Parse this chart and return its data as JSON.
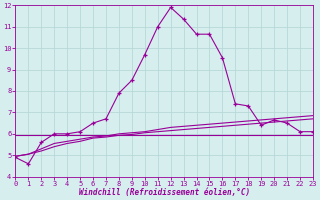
{
  "x": [
    0,
    1,
    2,
    3,
    4,
    5,
    6,
    7,
    8,
    9,
    10,
    11,
    12,
    13,
    14,
    15,
    16,
    17,
    18,
    19,
    20,
    21,
    22,
    23
  ],
  "line_main": [
    4.9,
    4.6,
    5.6,
    6.0,
    6.0,
    6.1,
    6.5,
    6.7,
    7.9,
    8.5,
    9.7,
    11.0,
    11.9,
    11.35,
    10.65,
    10.65,
    9.55,
    7.4,
    7.3,
    6.4,
    6.65,
    6.5,
    6.1,
    6.1
  ],
  "line_flat": [
    5.95,
    5.95,
    5.95,
    5.95,
    5.95,
    5.95,
    5.95,
    5.95,
    5.95,
    5.95,
    5.95,
    5.95,
    5.95,
    5.95,
    5.95,
    5.95,
    5.95,
    5.95,
    5.95,
    5.95,
    5.95,
    5.95,
    5.95,
    5.95
  ],
  "line_diag1": [
    4.95,
    5.05,
    5.3,
    5.55,
    5.65,
    5.75,
    5.85,
    5.9,
    6.0,
    6.05,
    6.1,
    6.2,
    6.3,
    6.35,
    6.4,
    6.45,
    6.5,
    6.55,
    6.6,
    6.65,
    6.7,
    6.75,
    6.8,
    6.85
  ],
  "line_diag2": [
    4.95,
    5.05,
    5.2,
    5.4,
    5.55,
    5.65,
    5.8,
    5.85,
    5.93,
    5.97,
    6.05,
    6.1,
    6.15,
    6.2,
    6.25,
    6.3,
    6.35,
    6.4,
    6.45,
    6.5,
    6.55,
    6.6,
    6.65,
    6.7
  ],
  "line_color": "#990099",
  "bg_color": "#d6eeee",
  "grid_color": "#b8d8d8",
  "xlabel": "Windchill (Refroidissement éolien,°C)",
  "ylim": [
    4,
    12
  ],
  "xlim": [
    0,
    23
  ],
  "yticks": [
    4,
    5,
    6,
    7,
    8,
    9,
    10,
    11,
    12
  ],
  "xticks": [
    0,
    1,
    2,
    3,
    4,
    5,
    6,
    7,
    8,
    9,
    10,
    11,
    12,
    13,
    14,
    15,
    16,
    17,
    18,
    19,
    20,
    21,
    22,
    23
  ]
}
